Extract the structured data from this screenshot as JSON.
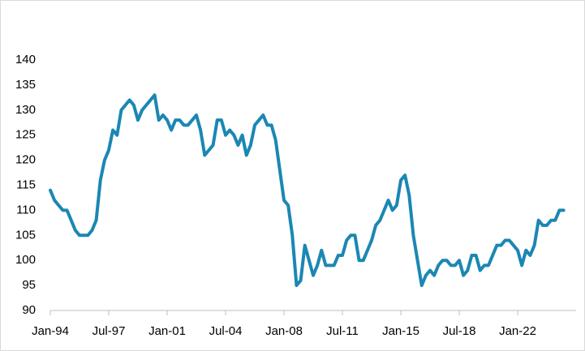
{
  "chart_data": {
    "type": "line",
    "categories": [
      "Jan-94",
      null,
      null,
      null,
      null,
      null,
      null,
      null,
      null,
      null,
      null,
      null,
      null,
      null,
      "Jul-97",
      null,
      null,
      null,
      null,
      null,
      null,
      null,
      null,
      null,
      null,
      null,
      null,
      null,
      "Jan-01",
      null,
      null,
      null,
      null,
      null,
      null,
      null,
      null,
      null,
      null,
      null,
      null,
      null,
      "Jul-04",
      null,
      null,
      null,
      null,
      null,
      null,
      null,
      null,
      null,
      null,
      null,
      null,
      null,
      "Jan-08",
      null,
      null,
      null,
      null,
      null,
      null,
      null,
      null,
      null,
      null,
      null,
      null,
      null,
      "Jul-11",
      null,
      null,
      null,
      null,
      null,
      null,
      null,
      null,
      null,
      null,
      null,
      null,
      null,
      "Jan-15",
      null,
      null,
      null,
      null,
      null,
      null,
      null,
      null,
      null,
      null,
      null,
      null,
      null,
      "Jul-18",
      null,
      null,
      null,
      null,
      null,
      null,
      null,
      null,
      null,
      null,
      null,
      null,
      null,
      "Jan-22",
      null,
      null,
      null,
      null,
      null,
      null,
      null,
      null,
      null,
      null,
      null
    ],
    "values": [
      114,
      112,
      111,
      110,
      110,
      108,
      106,
      105,
      105,
      105,
      106,
      108,
      116,
      120,
      122,
      126,
      125,
      130,
      131,
      132,
      131,
      128,
      130,
      131,
      132,
      133,
      128,
      129,
      128,
      126,
      128,
      128,
      127,
      127,
      128,
      129,
      126,
      121,
      122,
      123,
      128,
      128,
      125,
      126,
      125,
      123,
      125,
      121,
      123,
      127,
      128,
      129,
      127,
      127,
      124,
      118,
      112,
      111,
      105,
      95,
      96,
      103,
      100,
      97,
      99,
      102,
      99,
      99,
      99,
      101,
      101,
      104,
      105,
      105,
      100,
      100,
      102,
      104,
      107,
      108,
      110,
      112,
      110,
      111,
      116,
      117,
      113,
      105,
      100,
      95,
      97,
      98,
      97,
      99,
      100,
      100,
      99,
      99,
      100,
      97,
      98,
      101,
      101,
      98,
      99,
      99,
      101,
      103,
      103,
      104,
      104,
      103,
      102,
      99,
      102,
      101,
      103,
      108,
      107,
      107,
      108,
      108,
      110,
      110
    ],
    "color": "#1b87b3",
    "ylim": [
      90,
      140
    ],
    "yticks": [
      90,
      95,
      100,
      105,
      110,
      115,
      120,
      125,
      130,
      135,
      140
    ],
    "grid": false
  }
}
